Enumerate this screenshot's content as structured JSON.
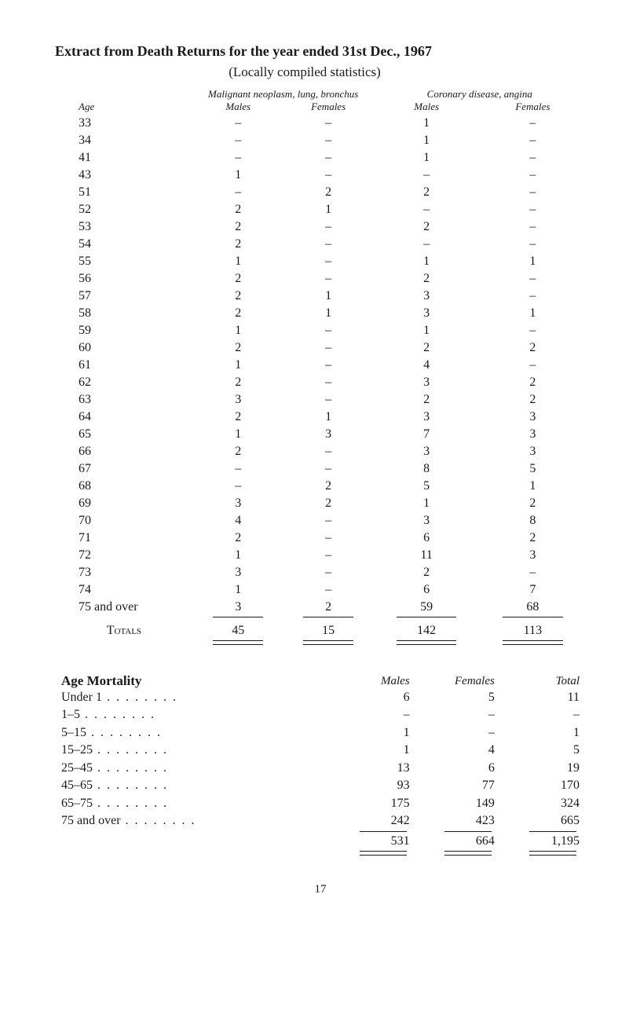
{
  "title": "Extract from Death Returns for the year ended 31st Dec., 1967",
  "subtitle": "(Locally compiled statistics)",
  "deaths_table": {
    "age_header": "Age",
    "group1_header": "Malignant neoplasm, lung, bronchus",
    "group2_header": "Coronary disease, angina",
    "sub_males": "Males",
    "sub_females": "Females",
    "rows": [
      {
        "age": "33",
        "mn_m": "–",
        "mn_f": "–",
        "cd_m": "1",
        "cd_f": "–"
      },
      {
        "age": "34",
        "mn_m": "–",
        "mn_f": "–",
        "cd_m": "1",
        "cd_f": "–"
      },
      {
        "age": "41",
        "mn_m": "–",
        "mn_f": "–",
        "cd_m": "1",
        "cd_f": "–"
      },
      {
        "age": "43",
        "mn_m": "1",
        "mn_f": "–",
        "cd_m": "–",
        "cd_f": "–"
      },
      {
        "age": "51",
        "mn_m": "–",
        "mn_f": "2",
        "cd_m": "2",
        "cd_f": "–"
      },
      {
        "age": "52",
        "mn_m": "2",
        "mn_f": "1",
        "cd_m": "–",
        "cd_f": "–"
      },
      {
        "age": "53",
        "mn_m": "2",
        "mn_f": "–",
        "cd_m": "2",
        "cd_f": "–"
      },
      {
        "age": "54",
        "mn_m": "2",
        "mn_f": "–",
        "cd_m": "–",
        "cd_f": "–"
      },
      {
        "age": "55",
        "mn_m": "1",
        "mn_f": "–",
        "cd_m": "1",
        "cd_f": "1"
      },
      {
        "age": "56",
        "mn_m": "2",
        "mn_f": "–",
        "cd_m": "2",
        "cd_f": "–"
      },
      {
        "age": "57",
        "mn_m": "2",
        "mn_f": "1",
        "cd_m": "3",
        "cd_f": "–"
      },
      {
        "age": "58",
        "mn_m": "2",
        "mn_f": "1",
        "cd_m": "3",
        "cd_f": "1"
      },
      {
        "age": "59",
        "mn_m": "1",
        "mn_f": "–",
        "cd_m": "1",
        "cd_f": "–"
      },
      {
        "age": "60",
        "mn_m": "2",
        "mn_f": "–",
        "cd_m": "2",
        "cd_f": "2"
      },
      {
        "age": "61",
        "mn_m": "1",
        "mn_f": "–",
        "cd_m": "4",
        "cd_f": "–"
      },
      {
        "age": "62",
        "mn_m": "2",
        "mn_f": "–",
        "cd_m": "3",
        "cd_f": "2"
      },
      {
        "age": "63",
        "mn_m": "3",
        "mn_f": "–",
        "cd_m": "2",
        "cd_f": "2"
      },
      {
        "age": "64",
        "mn_m": "2",
        "mn_f": "1",
        "cd_m": "3",
        "cd_f": "3"
      },
      {
        "age": "65",
        "mn_m": "1",
        "mn_f": "3",
        "cd_m": "7",
        "cd_f": "3"
      },
      {
        "age": "66",
        "mn_m": "2",
        "mn_f": "–",
        "cd_m": "3",
        "cd_f": "3"
      },
      {
        "age": "67",
        "mn_m": "–",
        "mn_f": "–",
        "cd_m": "8",
        "cd_f": "5"
      },
      {
        "age": "68",
        "mn_m": "–",
        "mn_f": "2",
        "cd_m": "5",
        "cd_f": "1"
      },
      {
        "age": "69",
        "mn_m": "3",
        "mn_f": "2",
        "cd_m": "1",
        "cd_f": "2"
      },
      {
        "age": "70",
        "mn_m": "4",
        "mn_f": "–",
        "cd_m": "3",
        "cd_f": "8"
      },
      {
        "age": "71",
        "mn_m": "2",
        "mn_f": "–",
        "cd_m": "6",
        "cd_f": "2"
      },
      {
        "age": "72",
        "mn_m": "1",
        "mn_f": "–",
        "cd_m": "11",
        "cd_f": "3"
      },
      {
        "age": "73",
        "mn_m": "3",
        "mn_f": "–",
        "cd_m": "2",
        "cd_f": "–"
      },
      {
        "age": "74",
        "mn_m": "1",
        "mn_f": "–",
        "cd_m": "6",
        "cd_f": "7"
      },
      {
        "age": "75 and over",
        "mn_m": "3",
        "mn_f": "2",
        "cd_m": "59",
        "cd_f": "68"
      }
    ],
    "totals_label": "Totals",
    "totals": {
      "mn_m": "45",
      "mn_f": "15",
      "cd_m": "142",
      "cd_f": "113"
    }
  },
  "mortality": {
    "title": "Age Mortality",
    "headers": {
      "males": "Males",
      "females": "Females",
      "total": "Total"
    },
    "rows": [
      {
        "label": "Under 1",
        "m": "6",
        "f": "5",
        "t": "11"
      },
      {
        "label": "1–5",
        "m": "–",
        "f": "–",
        "t": "–"
      },
      {
        "label": "5–15",
        "m": "1",
        "f": "–",
        "t": "1"
      },
      {
        "label": "15–25",
        "m": "1",
        "f": "4",
        "t": "5"
      },
      {
        "label": "25–45",
        "m": "13",
        "f": "6",
        "t": "19"
      },
      {
        "label": "45–65",
        "m": "93",
        "f": "77",
        "t": "170"
      },
      {
        "label": "65–75",
        "m": "175",
        "f": "149",
        "t": "324"
      },
      {
        "label": "75 and over",
        "m": "242",
        "f": "423",
        "t": "665"
      }
    ],
    "grand": {
      "m": "531",
      "f": "664",
      "t": "1,195"
    }
  },
  "page_number": "17"
}
